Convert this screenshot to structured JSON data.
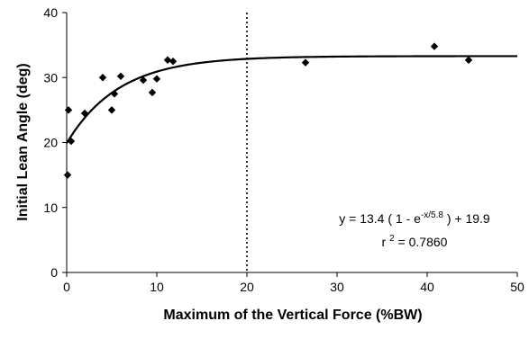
{
  "chart_data": {
    "type": "scatter",
    "title": "",
    "xlabel": "Maximum of the Vertical Force (%BW)",
    "ylabel": "Initial Lean Angle (deg)",
    "xlim": [
      0,
      50
    ],
    "ylim": [
      0,
      40
    ],
    "x_ticks": [
      "0",
      "10",
      "20",
      "30",
      "40",
      "50"
    ],
    "y_ticks": [
      "0",
      "10",
      "20",
      "30",
      "40"
    ],
    "grid": false,
    "legend": "none",
    "series": [
      {
        "kind": "points",
        "marker": "diamond",
        "x": [
          0.1,
          0.2,
          0.5,
          2.0,
          4.0,
          5.0,
          5.3,
          6.0,
          8.5,
          9.5,
          10.0,
          11.2,
          11.8,
          26.5,
          40.8,
          44.6
        ],
        "y": [
          15.0,
          25.0,
          20.2,
          24.5,
          30.0,
          25.0,
          27.5,
          30.2,
          29.6,
          27.7,
          29.8,
          32.7,
          32.5,
          32.3,
          34.8,
          32.7
        ]
      },
      {
        "kind": "fit-line",
        "a": 13.4,
        "tau": 5.8,
        "c": 19.9
      }
    ],
    "reference_line": {
      "x": 20,
      "style": "dotted"
    },
    "annotation": {
      "eq_prefix": "y = 13.4 ( 1 - e",
      "eq_exponent": "-x/5.8",
      "eq_suffix": " ) + 19.9",
      "r2_prefix": "r ",
      "r2_exponent": "2",
      "r2_suffix": " = 0.7860"
    },
    "colors": {
      "marks": "#000000",
      "background": "#ffffff"
    }
  }
}
